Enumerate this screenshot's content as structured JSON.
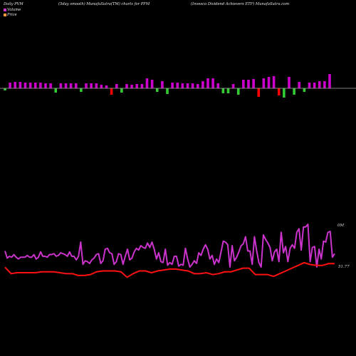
{
  "header": {
    "left": "Daily PVM",
    "center_left": "(5day smooth) MunafaSutra(TM) charts for PFM",
    "center_right": "(Invesco  Dividend Achievers ETF) MunafaSutra.com"
  },
  "legend": [
    {
      "label": "Volume",
      "color": "#cc33cc"
    },
    {
      "label": "Price",
      "color": "#ff9933"
    }
  ],
  "colors": {
    "bar_up": "#cc00cc",
    "bar_down_green": "#33cc33",
    "bar_down_red": "#ff0000",
    "volume_line": "#cc33cc",
    "price_line": "#ff1111",
    "axis_line": "#aaaaaa",
    "background": "#000000"
  },
  "chart_data": [
    {
      "type": "bar",
      "name": "Daily PVM bars",
      "values": [
        -3,
        8,
        9,
        9,
        8,
        8,
        8,
        8,
        7,
        7,
        -6,
        7,
        7,
        7,
        7,
        -5,
        7,
        7,
        7,
        5,
        4,
        -9,
        6,
        -6,
        6,
        5,
        6,
        6,
        14,
        12,
        -5,
        10,
        -8,
        8,
        8,
        7,
        7,
        7,
        6,
        10,
        14,
        14,
        7,
        -7,
        -7,
        6,
        -9,
        12,
        12,
        13,
        -12,
        14,
        16,
        17,
        -10,
        -13,
        16,
        -9,
        9,
        -5,
        8,
        8,
        10,
        10,
        20
      ],
      "colors": [
        "g",
        "m",
        "m",
        "m",
        "m",
        "m",
        "m",
        "m",
        "m",
        "m",
        "g",
        "m",
        "m",
        "m",
        "m",
        "g",
        "m",
        "m",
        "m",
        "m",
        "m",
        "r",
        "m",
        "g",
        "m",
        "m",
        "m",
        "m",
        "m",
        "m",
        "g",
        "m",
        "g",
        "m",
        "m",
        "m",
        "m",
        "m",
        "m",
        "m",
        "m",
        "m",
        "m",
        "g",
        "g",
        "m",
        "g",
        "m",
        "m",
        "m",
        "r",
        "m",
        "m",
        "m",
        "r",
        "g",
        "m",
        "g",
        "m",
        "g",
        "m",
        "m",
        "m",
        "m",
        "m"
      ],
      "ylim": [
        -20,
        20
      ]
    },
    {
      "type": "line",
      "series": [
        {
          "key": "volume",
          "end_label": "0M",
          "values": [
            18,
            10,
            12,
            11,
            14,
            11,
            9,
            11,
            11,
            11,
            13,
            11,
            11,
            14,
            9,
            11,
            17,
            12,
            12,
            11,
            14,
            14,
            15,
            12,
            13,
            16,
            15,
            14,
            12,
            17,
            12,
            12,
            8,
            12,
            28,
            3,
            7,
            6,
            4,
            8,
            10,
            14,
            15,
            4,
            7,
            20,
            21,
            16,
            15,
            3,
            6,
            15,
            14,
            3,
            12,
            20,
            8,
            10,
            17,
            21,
            19,
            24,
            22,
            21,
            27,
            22,
            28,
            20,
            9,
            16,
            6,
            5,
            20,
            2,
            5,
            3,
            12,
            12,
            1,
            3,
            2,
            21,
            9,
            0,
            3,
            7,
            4,
            16,
            13,
            20,
            25,
            20,
            9,
            13,
            3,
            9,
            5,
            17,
            29,
            28,
            25,
            0,
            24,
            7,
            11,
            17,
            24,
            26,
            34,
            18,
            18,
            3,
            34,
            18,
            5,
            0,
            36,
            31,
            27,
            22,
            7,
            17,
            20,
            6,
            39,
            16,
            23,
            6,
            21,
            25,
            21,
            39,
            43,
            19,
            45,
            45,
            48,
            6,
            22,
            23,
            0,
            20,
            9,
            29,
            28,
            39,
            40,
            11,
            15
          ]
        },
        {
          "key": "price",
          "end_label": "51.77",
          "values": [
            51.3,
            50.6,
            50.7,
            50.7,
            50.7,
            50.7,
            50.8,
            50.8,
            50.8,
            50.7,
            50.6,
            50.6,
            50.4,
            50.4,
            50.5,
            50.8,
            50.9,
            50.9,
            50.9,
            50.8,
            50.2,
            50.6,
            50.9,
            50.9,
            50.7,
            50.9,
            51.0,
            51.1,
            51.1,
            51.0,
            50.9,
            50.6,
            50.6,
            50.7,
            50.5,
            50.6,
            50.8,
            50.8,
            51.0,
            51.2,
            51.2,
            50.5,
            50.5,
            50.5,
            50.3,
            50.6,
            50.9,
            51.2,
            51.5,
            51.8,
            51.6,
            51.5,
            51.5,
            51.7,
            51.7
          ]
        }
      ]
    }
  ]
}
